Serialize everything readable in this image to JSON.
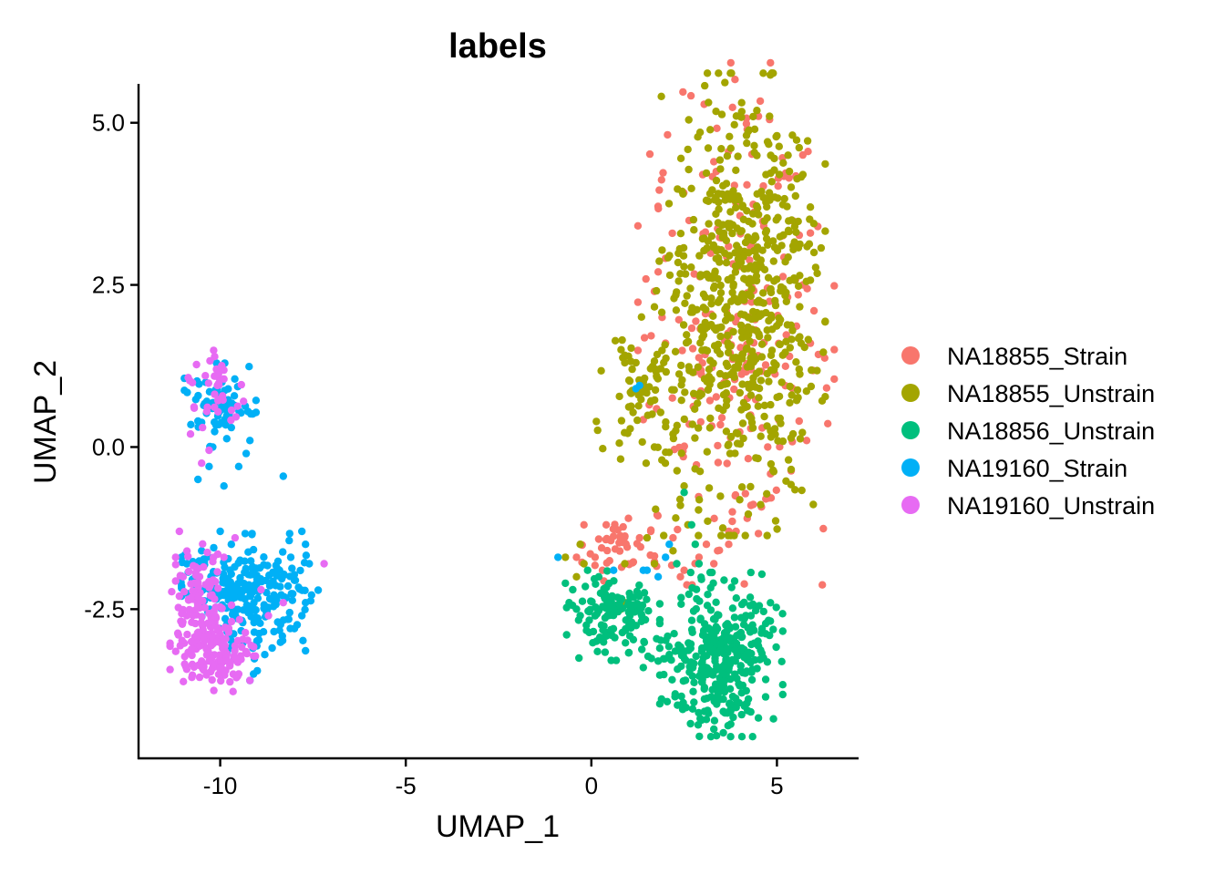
{
  "chart_data": {
    "type": "scatter",
    "title": "labels",
    "xlabel": "UMAP_1",
    "ylabel": "UMAP_2",
    "xlim": [
      -12.2,
      7.2
    ],
    "ylim": [
      -4.8,
      5.6
    ],
    "x_ticks": [
      -10,
      -5,
      0,
      5
    ],
    "x_tick_labels": [
      "-10",
      "-5",
      "0",
      "5"
    ],
    "y_ticks": [
      -2.5,
      0.0,
      2.5,
      5.0
    ],
    "y_tick_labels": [
      "-2.5",
      "0.0",
      "2.5",
      "5.0"
    ],
    "grid": false,
    "legend_position": "right",
    "series": [
      {
        "name": "NA18855_Strain",
        "color": "#F8766D",
        "n": 260,
        "clusters": [
          {
            "x": 3.9,
            "y": 1.9,
            "sx": 1.15,
            "sy": 1.75,
            "w": 0.85
          },
          {
            "x": 0.9,
            "y": -1.6,
            "sx": 0.55,
            "sy": 0.22,
            "w": 0.15
          }
        ],
        "points": [
          [
            4.5,
            5.1
          ],
          [
            4.8,
            5.05
          ],
          [
            5.9,
            3.3
          ],
          [
            6.1,
            3.4
          ],
          [
            1.8,
            2.7
          ],
          [
            1.7,
            2.4
          ],
          [
            2.0,
            1.6
          ],
          [
            4.7,
            -0.8
          ],
          [
            4.3,
            -0.9
          ],
          [
            3.8,
            -1.0
          ],
          [
            4.2,
            -1.1
          ],
          [
            3.9,
            -1.3
          ],
          [
            3.7,
            -1.5
          ],
          [
            3.4,
            -1.6
          ],
          [
            3.3,
            -1.8
          ],
          [
            2.9,
            -1.7
          ],
          [
            2.5,
            -1.9
          ],
          [
            2.2,
            -1.4
          ],
          [
            1.0,
            -1.1
          ],
          [
            1.3,
            -1.4
          ],
          [
            0.4,
            -1.2
          ],
          [
            -0.2,
            -1.2
          ],
          [
            -0.4,
            -1.7
          ],
          [
            0.1,
            -1.7
          ],
          [
            0.3,
            -1.9
          ],
          [
            1.6,
            -1.3
          ],
          [
            2.4,
            -2.0
          ],
          [
            3.1,
            -1.5
          ],
          [
            5.8,
            0.1
          ],
          [
            5.6,
            0.4
          ],
          [
            5.9,
            1.6
          ],
          [
            6.0,
            2.1
          ],
          [
            5.7,
            2.5
          ],
          [
            3.3,
            4.4
          ],
          [
            3.0,
            4.2
          ],
          [
            4.2,
            4.9
          ]
        ]
      },
      {
        "name": "NA18855_Unstrain",
        "color": "#A3A500",
        "n": 700,
        "clusters": [
          {
            "x": 4.0,
            "y": 2.2,
            "sx": 1.0,
            "sy": 1.55,
            "w": 0.93
          },
          {
            "x": 1.4,
            "y": 0.9,
            "sx": 0.55,
            "sy": 0.5,
            "w": 0.07
          }
        ],
        "points": [
          [
            4.8,
            5.1
          ],
          [
            4.4,
            4.9
          ],
          [
            5.0,
            4.8
          ],
          [
            3.5,
            4.6
          ],
          [
            5.3,
            4.5
          ],
          [
            5.7,
            4.2
          ],
          [
            5.9,
            3.7
          ],
          [
            6.0,
            3.0
          ],
          [
            5.6,
            1.2
          ],
          [
            5.4,
            0.8
          ],
          [
            1.0,
            1.4
          ],
          [
            1.1,
            1.2
          ],
          [
            1.2,
            1.3
          ],
          [
            0.8,
            1.5
          ],
          [
            0.9,
            1.3
          ],
          [
            1.4,
            1.0
          ],
          [
            2.5,
            -0.6
          ],
          [
            2.4,
            -0.9
          ],
          [
            2.6,
            -1.2
          ],
          [
            2.2,
            -1.6
          ],
          [
            1.5,
            -1.4
          ],
          [
            1.7,
            -1.8
          ],
          [
            0.9,
            -1.8
          ],
          [
            -0.3,
            -1.5
          ],
          [
            -0.2,
            -1.8
          ],
          [
            -0.7,
            -1.7
          ],
          [
            -0.4,
            -2.0
          ],
          [
            0.9,
            -2.4
          ],
          [
            0.8,
            -2.5
          ],
          [
            1.6,
            0.7
          ],
          [
            2.2,
            0.2
          ],
          [
            1.9,
            -0.2
          ]
        ]
      },
      {
        "name": "NA18856_Unstrain",
        "color": "#00BF7D",
        "n": 470,
        "clusters": [
          {
            "x": 3.5,
            "y": -3.2,
            "sx": 0.72,
            "sy": 0.55,
            "w": 0.62
          },
          {
            "x": 3.4,
            "y": -3.9,
            "sx": 0.45,
            "sy": 0.22,
            "w": 0.12
          },
          {
            "x": 0.6,
            "y": -2.6,
            "sx": 0.55,
            "sy": 0.3,
            "w": 0.26
          }
        ],
        "points": [
          [
            3.3,
            -4.35
          ],
          [
            3.1,
            -4.2
          ],
          [
            3.6,
            -4.1
          ],
          [
            4.6,
            -2.8
          ],
          [
            4.3,
            -2.6
          ],
          [
            2.8,
            -1.5
          ],
          [
            2.7,
            -1.2
          ],
          [
            2.5,
            -0.7
          ],
          [
            2.9,
            -1.8
          ],
          [
            2.3,
            -1.8
          ],
          [
            -0.5,
            -2.2
          ],
          [
            -0.6,
            -2.4
          ],
          [
            -0.4,
            -2.5
          ],
          [
            -0.1,
            -1.9
          ],
          [
            0.2,
            -2.0
          ],
          [
            -0.3,
            -2.6
          ],
          [
            -0.7,
            -2.1
          ],
          [
            1.4,
            -3.4
          ],
          [
            1.8,
            -3.3
          ],
          [
            2.1,
            -3.2
          ]
        ]
      },
      {
        "name": "NA19160_Strain",
        "color": "#00B0F6",
        "n": 330,
        "clusters": [
          {
            "x": -10.0,
            "y": 0.65,
            "sx": 0.42,
            "sy": 0.28,
            "w": 0.2
          },
          {
            "x": -9.2,
            "y": -2.3,
            "sx": 0.8,
            "sy": 0.42,
            "w": 0.72
          },
          {
            "x": -10.3,
            "y": -1.9,
            "sx": 0.5,
            "sy": 0.25,
            "w": 0.08
          }
        ],
        "points": [
          [
            -8.3,
            -0.45
          ],
          [
            -9.3,
            -0.1
          ],
          [
            -9.5,
            -0.3
          ],
          [
            -10.3,
            -0.3
          ],
          [
            -10.6,
            -0.5
          ],
          [
            -9.9,
            -0.6
          ],
          [
            -10.2,
            0.0
          ],
          [
            -9.7,
            0.3
          ],
          [
            -10.6,
            0.4
          ],
          [
            -9.2,
            0.1
          ],
          [
            -7.8,
            -1.3
          ],
          [
            -7.7,
            -1.5
          ],
          [
            -7.6,
            -1.8
          ],
          [
            -8.1,
            -1.7
          ],
          [
            -8.4,
            -1.9
          ],
          [
            -7.7,
            -2.4
          ],
          [
            -7.8,
            -2.6
          ],
          [
            -8.0,
            -2.8
          ],
          [
            -8.6,
            -3.1
          ],
          [
            -8.8,
            -3.2
          ],
          [
            -9.1,
            -3.5
          ],
          [
            -9.2,
            -3.6
          ],
          [
            -9.0,
            -3.45
          ],
          [
            -10.0,
            -1.3
          ],
          [
            -9.7,
            -1.5
          ],
          [
            -10.5,
            -1.6
          ],
          [
            -10.9,
            -1.8
          ],
          [
            1.3,
            0.95
          ],
          [
            1.2,
            0.9
          ],
          [
            -0.9,
            -1.7
          ],
          [
            0.6,
            -1.9
          ],
          [
            1.4,
            -1.9
          ],
          [
            2.0,
            -1.7
          ],
          [
            2.1,
            -1.5
          ],
          [
            1.8,
            -2.0
          ],
          [
            1.5,
            -1.9
          ]
        ]
      },
      {
        "name": "NA19160_Unstrain",
        "color": "#E76BF3",
        "n": 250,
        "clusters": [
          {
            "x": -10.2,
            "y": 0.8,
            "sx": 0.45,
            "sy": 0.3,
            "w": 0.15
          },
          {
            "x": -10.2,
            "y": -3.1,
            "sx": 0.5,
            "sy": 0.3,
            "w": 0.55
          },
          {
            "x": -10.5,
            "y": -2.3,
            "sx": 0.35,
            "sy": 0.35,
            "w": 0.3
          }
        ],
        "points": [
          [
            -10.1,
            1.2
          ],
          [
            -10.4,
            1.1
          ],
          [
            -9.9,
            1.05
          ],
          [
            -10.7,
            0.6
          ],
          [
            -10.8,
            0.2
          ],
          [
            -10.3,
            -0.05
          ],
          [
            -10.5,
            -0.25
          ],
          [
            -11.1,
            -1.3
          ],
          [
            -11.2,
            -1.7
          ],
          [
            -11.0,
            -2.0
          ],
          [
            -11.1,
            -2.3
          ],
          [
            -10.9,
            -2.6
          ],
          [
            -10.6,
            -2.9
          ],
          [
            -10.3,
            -3.3
          ],
          [
            -9.8,
            -3.3
          ],
          [
            -9.5,
            -3.5
          ],
          [
            -9.2,
            -3.6
          ],
          [
            -10.0,
            -3.4
          ],
          [
            -10.5,
            -3.3
          ],
          [
            -9.6,
            -1.4
          ],
          [
            -9.9,
            -1.7
          ],
          [
            -8.9,
            -2.2
          ],
          [
            -7.2,
            -1.8
          ],
          [
            -8.7,
            -2.6
          ],
          [
            -8.3,
            -2.4
          ]
        ]
      }
    ]
  }
}
